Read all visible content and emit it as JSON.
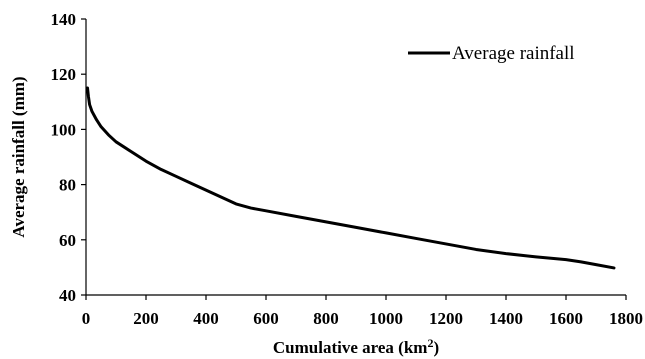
{
  "chart_data": {
    "type": "line",
    "xlabel": "Cumulative area (km",
    "xlabel_sup": "2",
    "xlabel_end": ")",
    "ylabel": "Average rainfall (mm)",
    "xlim": [
      0,
      1800
    ],
    "ylim": [
      40,
      140
    ],
    "x_ticks": [
      0,
      200,
      400,
      600,
      800,
      1000,
      1200,
      1400,
      1600,
      1800
    ],
    "y_ticks": [
      40,
      60,
      80,
      100,
      120,
      140
    ],
    "legend_position": "top-right",
    "grid": false,
    "series": [
      {
        "name": "Average rainfall",
        "color": "#000000",
        "x": [
          5,
          8,
          12,
          20,
          35,
          50,
          75,
          100,
          150,
          200,
          250,
          300,
          350,
          400,
          450,
          500,
          550,
          600,
          700,
          800,
          900,
          1000,
          1100,
          1200,
          1300,
          1400,
          1500,
          1600,
          1650,
          1700,
          1760
        ],
        "y": [
          115,
          112,
          109,
          106.5,
          103.5,
          101,
          98,
          95.5,
          92,
          88.5,
          85.5,
          83,
          80.5,
          78,
          75.5,
          73,
          71.5,
          70.5,
          68.5,
          66.5,
          64.5,
          62.5,
          60.5,
          58.5,
          56.5,
          55,
          53.8,
          52.8,
          52,
          51,
          49.8
        ]
      }
    ]
  }
}
